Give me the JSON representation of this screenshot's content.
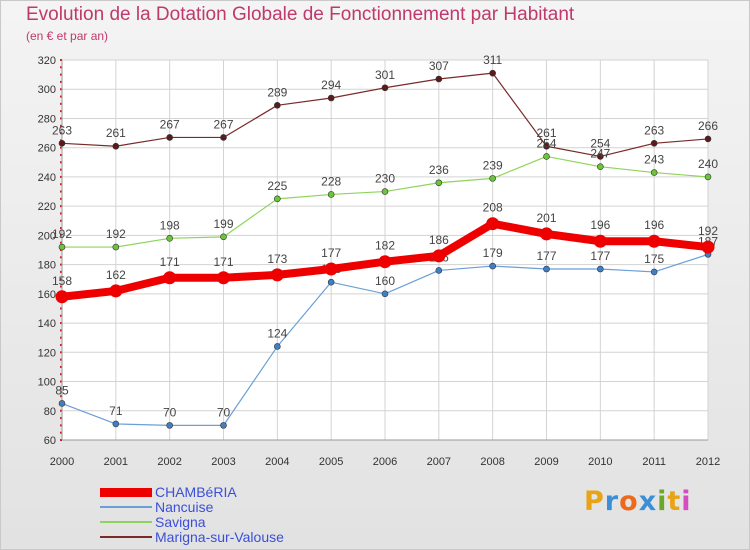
{
  "header": {
    "title": "Evolution de la Dotation Globale de Fonctionnement par Habitant",
    "subtitle": "(en € et par an)"
  },
  "logo": {
    "letters": [
      "P",
      "r",
      "o",
      "x",
      "i",
      "t",
      "i"
    ],
    "colors": [
      "#e8a317",
      "#3b8fd6",
      "#ec6a1c",
      "#3b8fd6",
      "#6aa82a",
      "#e8a317",
      "#d64bbf"
    ]
  },
  "chart_data": {
    "type": "line",
    "x": [
      "2000",
      "2001",
      "2002",
      "2003",
      "2004",
      "2005",
      "2006",
      "2007",
      "2008",
      "2009",
      "2010",
      "2011",
      "2012"
    ],
    "ylim": [
      60,
      320
    ],
    "yticks": [
      60,
      80,
      100,
      120,
      140,
      160,
      180,
      200,
      220,
      240,
      260,
      280,
      300,
      320
    ],
    "grid": true,
    "legend_placement": "bottom-left",
    "series": [
      {
        "name": "Marigna-sur-Valouse",
        "color": "#7a2a2a",
        "marker": "#5c1a1a",
        "values": [
          263,
          261,
          267,
          267,
          289,
          294,
          301,
          307,
          311,
          261,
          254,
          263,
          266
        ],
        "labels": [
          "263",
          "261",
          "267",
          "267",
          "289",
          "294",
          "301",
          "307",
          "311",
          "261",
          "254",
          "263",
          "266"
        ]
      },
      {
        "name": "Savigna",
        "color": "#8fd45a",
        "marker": "#6cc43a",
        "values": [
          192,
          192,
          198,
          199,
          225,
          228,
          230,
          236,
          239,
          254,
          247,
          243,
          240
        ],
        "labels": [
          "192",
          "192",
          "198",
          "199",
          "225",
          "228",
          "230",
          "236",
          "239",
          "254",
          "247",
          "243",
          "240"
        ]
      },
      {
        "name": "Nancuise",
        "color": "#6a9fd8",
        "marker": "#3f7fc6",
        "values": [
          85,
          71,
          70,
          70,
          124,
          168,
          160,
          176,
          179,
          177,
          177,
          175,
          187
        ],
        "labels": [
          "85",
          "71",
          "70",
          "70",
          "124",
          "168",
          "160",
          "176",
          "179",
          "177",
          "177",
          "175",
          "187"
        ]
      },
      {
        "name": "CHAMBéRIA",
        "color": "#ee0000",
        "marker": "#ee0000",
        "values": [
          158,
          162,
          171,
          171,
          173,
          177,
          182,
          186,
          208,
          201,
          196,
          196,
          192
        ],
        "labels": [
          "158",
          "162",
          "171",
          "171",
          "173",
          "177",
          "182",
          "186",
          "208",
          "201",
          "196",
          "196",
          "192"
        ]
      }
    ],
    "legend": [
      {
        "name": "CHAMBéRIA",
        "color": "#ee0000"
      },
      {
        "name": "Nancuise",
        "color": "#6a9fd8"
      },
      {
        "name": "Savigna",
        "color": "#8fd45a"
      },
      {
        "name": "Marigna-sur-Valouse",
        "color": "#7a2a2a"
      }
    ]
  }
}
